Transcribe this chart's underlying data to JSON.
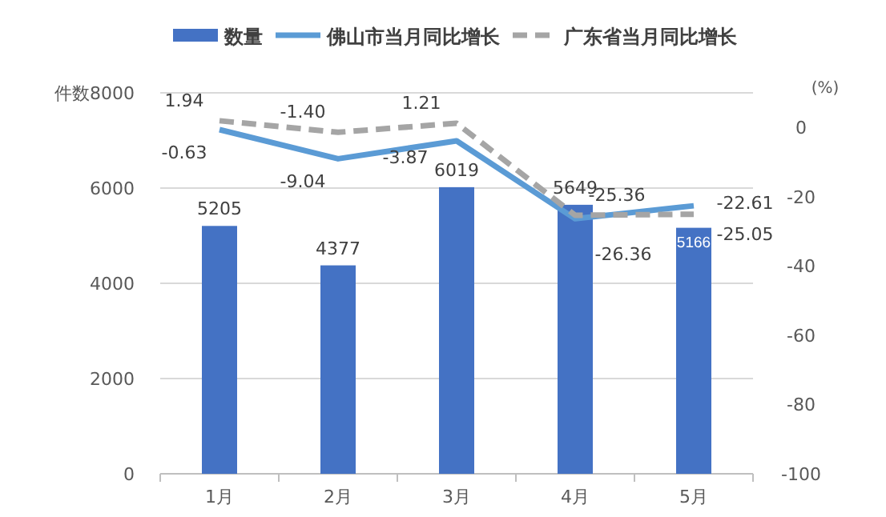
{
  "chart_data": {
    "type": "bar",
    "ylabel": "件数",
    "y2label": "(%)",
    "categories": [
      "1月",
      "2月",
      "3月",
      "4月",
      "5月"
    ],
    "series": [
      {
        "name": "数量",
        "color": "#4472c4",
        "values": [
          5205,
          4377,
          6019,
          5649,
          5166
        ]
      },
      {
        "name": "佛山市当月同比增长",
        "type": "line",
        "axis": "y2",
        "color": "#5b9bd5",
        "line_style": "solid",
        "values": [
          -0.63,
          -9.04,
          -3.87,
          -26.36,
          -22.61
        ],
        "value_labels": [
          "-0.63",
          "-9.04",
          "-3.87",
          "-26.36",
          "-22.61"
        ]
      },
      {
        "name": "广东省当月同比增长",
        "type": "line",
        "axis": "y2",
        "color": "#a5a5a5",
        "line_style": "dashed",
        "values": [
          1.94,
          -1.4,
          1.21,
          -25.36,
          -25.05
        ],
        "value_labels": [
          "1.94",
          "-1.40",
          "1.21",
          "-25.36",
          "-25.05"
        ]
      }
    ],
    "ylim": [
      0,
      8000
    ],
    "yticks": [
      0,
      2000,
      4000,
      6000,
      8000
    ],
    "y2lim": [
      -100,
      10
    ],
    "y2ticks": [
      -100,
      -80,
      -60,
      -40,
      -20,
      0
    ],
    "grid": "y",
    "legend": "top",
    "data_labels": true
  }
}
